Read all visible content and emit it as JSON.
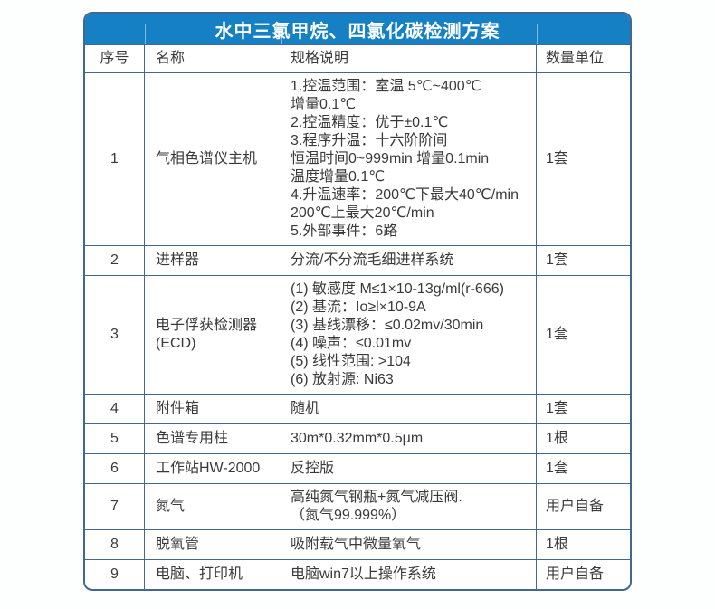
{
  "page": {
    "background_color": "#fdfefe"
  },
  "table": {
    "title": "水中三氯甲烷、四氯化碳检测方案",
    "title_bg_color": "#1580c4",
    "title_text_color": "#ffffff",
    "border_color": "#44678f",
    "headers": {
      "no": "序号",
      "name": "名称",
      "spec": "规格说明",
      "qty": "数量单位"
    },
    "rows": [
      {
        "no": "1",
        "name": "气相色谱仪主机",
        "spec": "1.控温范围：室温 5℃~400℃\n增量0.1℃\n2.控温精度：优于±0.1℃\n3.程序升温：十六阶阶间\n恒温时间0~999min 增量0.1min\n温度增量0.1℃\n4.升温速率：200℃下最大40℃/min\n200℃上最大20℃/min\n5.外部事件：6路",
        "qty": "1套"
      },
      {
        "no": "2",
        "name": "进样器",
        "spec": "分流/不分流毛细进样系统",
        "qty": "1套"
      },
      {
        "no": "3",
        "name": "电子俘获检测器\n(ECD)",
        "spec": "(1) 敏感度 M≤1×10-13g/ml(r-666)\n(2) 基流：Io≥l×10-9A\n(3) 基线漂移：≤0.02mv/30min\n(4) 噪声：≤0.01mv\n(5) 线性范围: >104\n(6) 放射源: Ni63",
        "qty": "1套"
      },
      {
        "no": "4",
        "name": "附件箱",
        "spec": "随机",
        "qty": "1套"
      },
      {
        "no": "5",
        "name": "色谱专用柱",
        "spec": "30m*0.32mm*0.5μm",
        "qty": "1根"
      },
      {
        "no": "6",
        "name": "工作站HW-2000",
        "spec": "反控版",
        "qty": "1套"
      },
      {
        "no": "7",
        "name": "氮气",
        "spec": "高纯氮气钢瓶+氮气减压阀.\n（氮气99.999%）",
        "qty": "用户自备"
      },
      {
        "no": "8",
        "name": "脱氧管",
        "spec": "吸附载气中微量氧气",
        "qty": "1根"
      },
      {
        "no": "9",
        "name": "电脑、打印机",
        "spec": "电脑win7以上操作系统",
        "qty": "用户自备"
      }
    ]
  }
}
